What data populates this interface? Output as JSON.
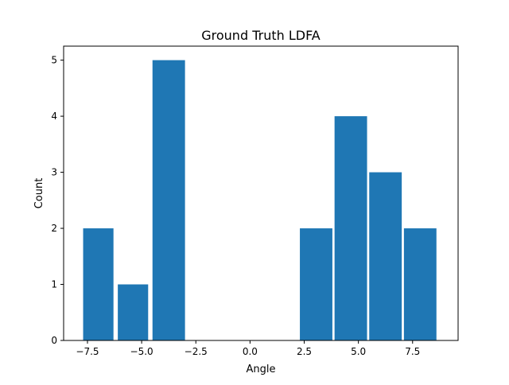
{
  "chart_data": {
    "type": "bar",
    "title": "Ground Truth LDFA",
    "xlabel": "Angle",
    "ylabel": "Count",
    "xlim": [
      -8.6,
      9.6
    ],
    "ylim": [
      0,
      5.25
    ],
    "grid": false,
    "legend": "none",
    "bars": [
      {
        "x0": -7.7,
        "x1": -6.3,
        "value": 2
      },
      {
        "x0": -6.1,
        "x1": -4.7,
        "value": 1
      },
      {
        "x0": -4.5,
        "x1": -3.0,
        "value": 5
      },
      {
        "x0": 2.3,
        "x1": 3.8,
        "value": 2
      },
      {
        "x0": 3.9,
        "x1": 5.4,
        "value": 4
      },
      {
        "x0": 5.5,
        "x1": 7.0,
        "value": 3
      },
      {
        "x0": 7.1,
        "x1": 8.6,
        "value": 2
      }
    ],
    "x_ticks": [
      -7.5,
      -5.0,
      -2.5,
      0.0,
      2.5,
      5.0,
      7.5
    ],
    "x_tick_labels": [
      "−7.5",
      "−5.0",
      "−2.5",
      "0.0",
      "2.5",
      "5.0",
      "7.5"
    ],
    "y_ticks": [
      0,
      1,
      2,
      3,
      4,
      5
    ],
    "y_tick_labels": [
      "0",
      "1",
      "2",
      "3",
      "4",
      "5"
    ],
    "colors": {
      "bar": "#1f77b4",
      "axes": "#000000"
    }
  }
}
